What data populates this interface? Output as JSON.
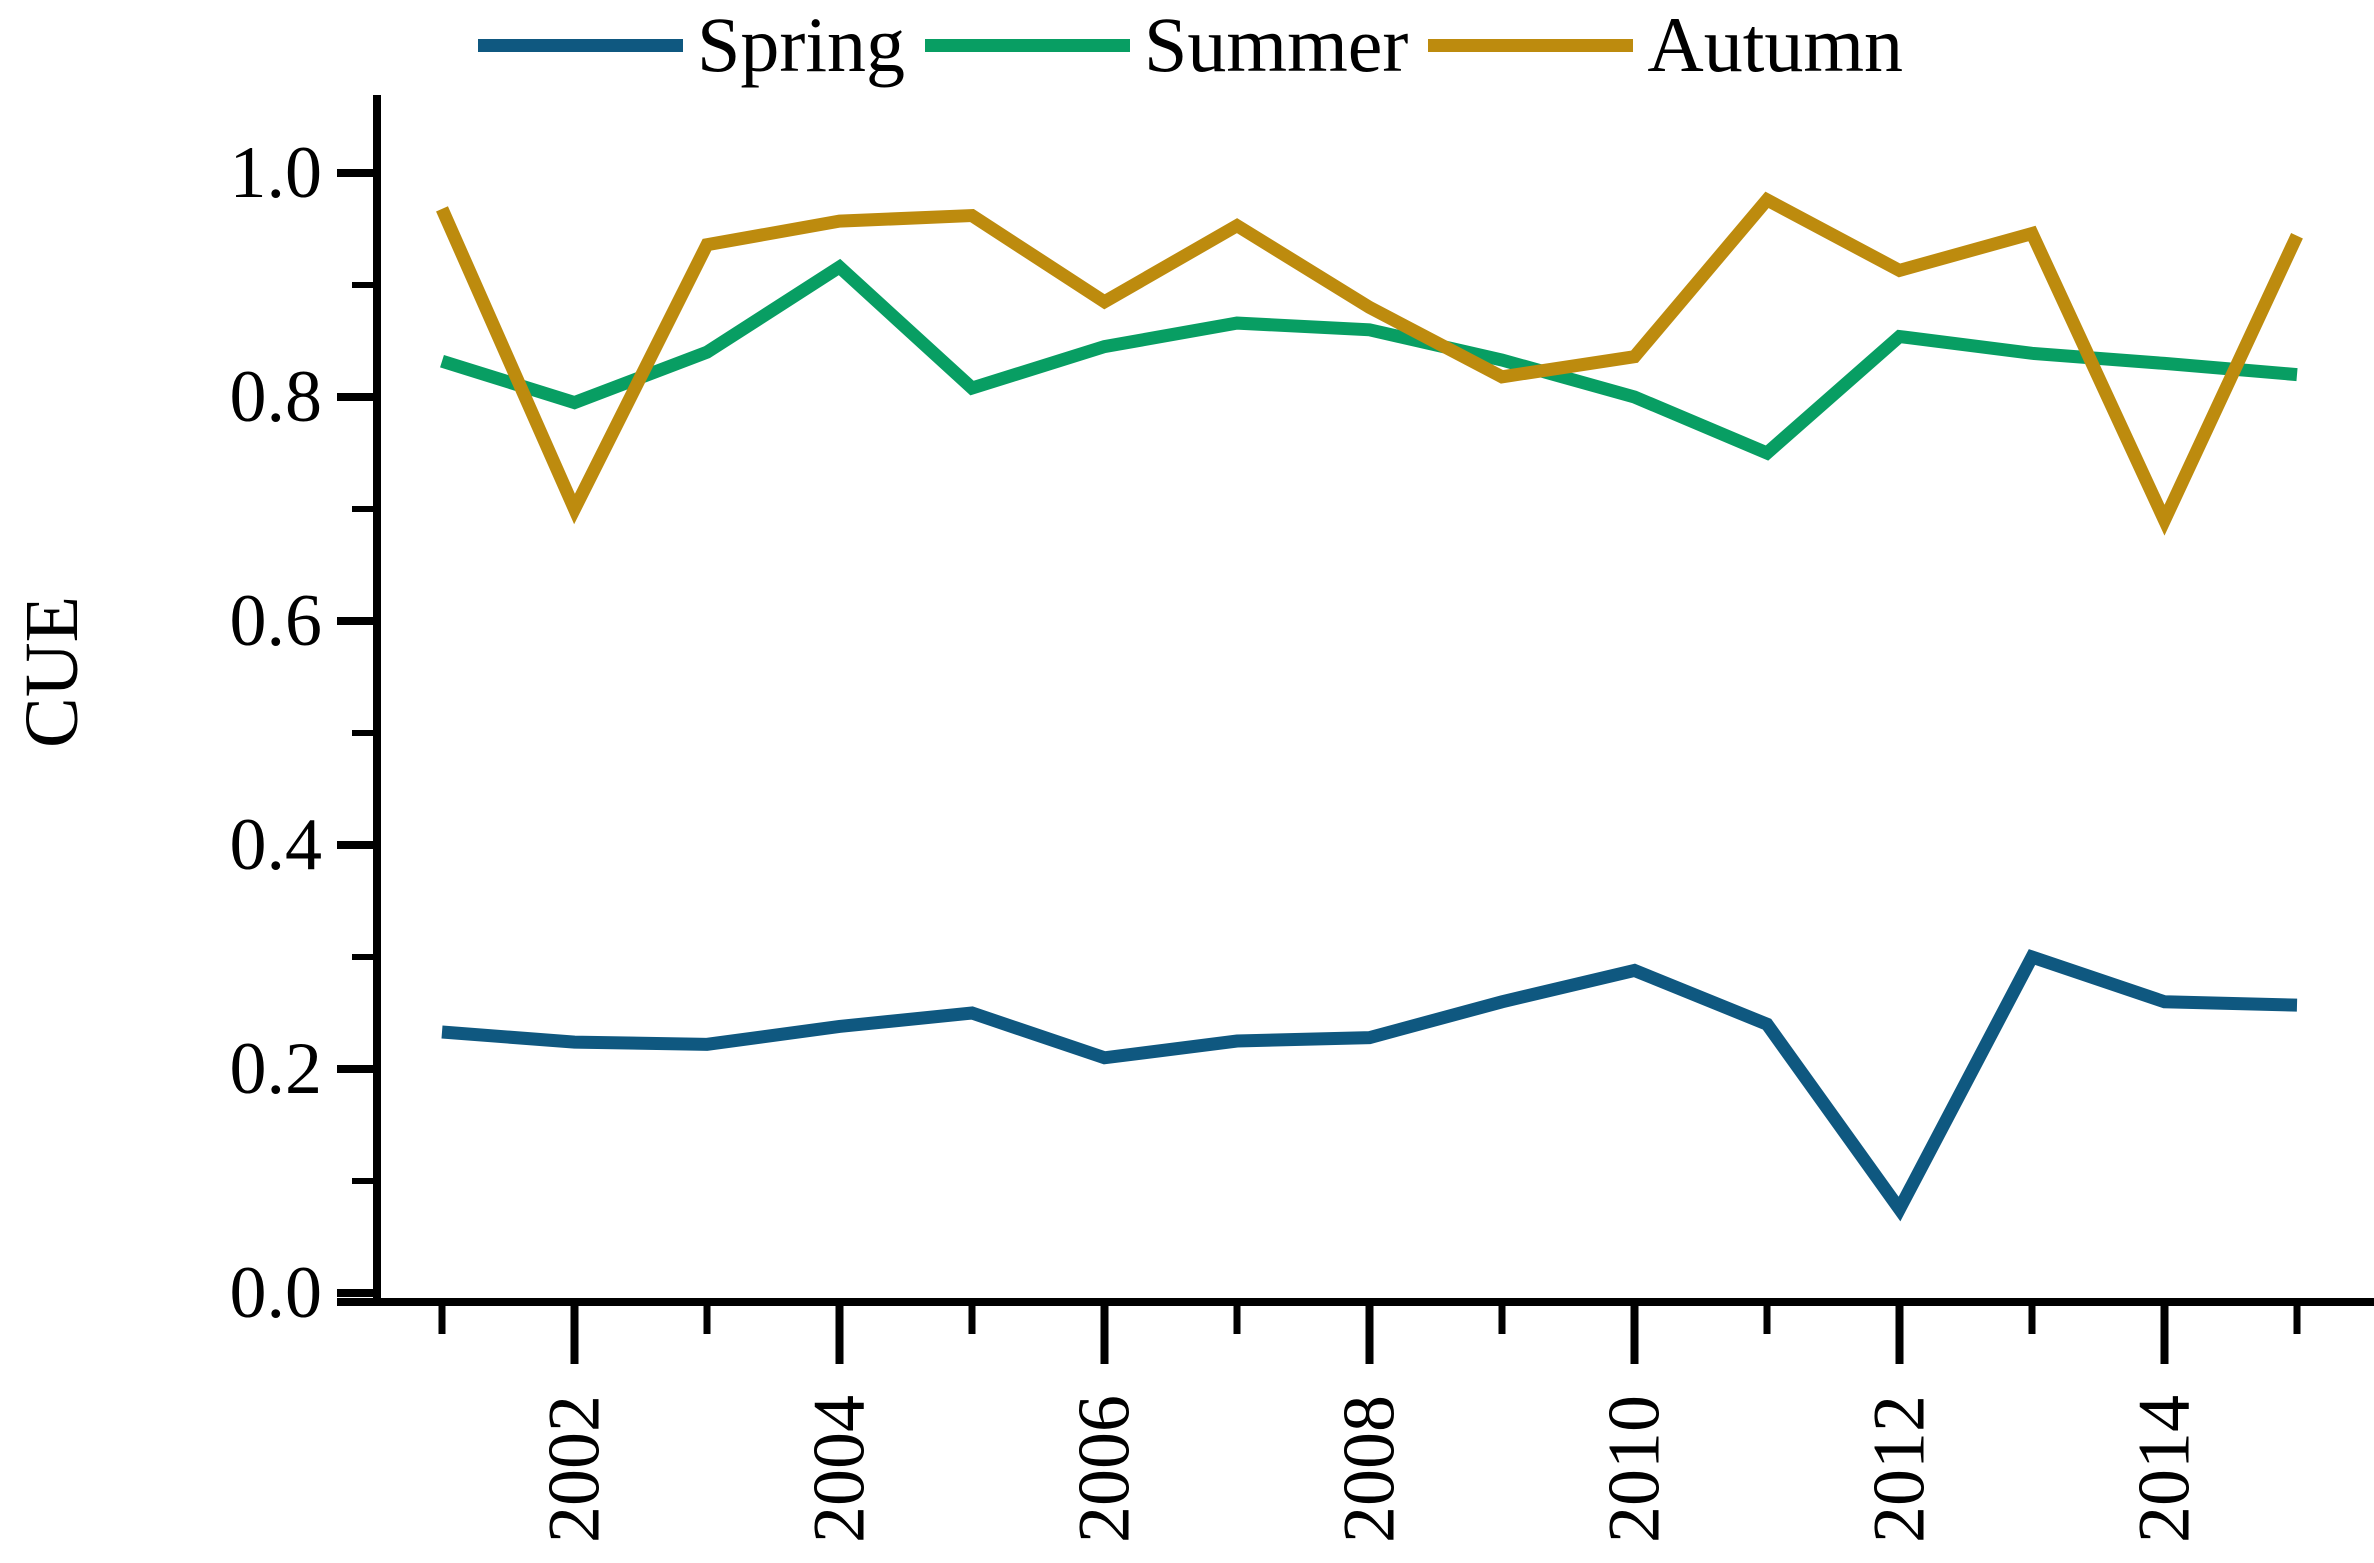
{
  "figure": {
    "background": "#ffffff"
  },
  "chart_data": {
    "type": "line",
    "title": "",
    "xlabel": "",
    "ylabel": "CUE",
    "legend_position": "top",
    "grid": false,
    "x": [
      2001,
      2002,
      2003,
      2004,
      2005,
      2006,
      2007,
      2008,
      2009,
      2010,
      2011,
      2012,
      2013,
      2014,
      2015
    ],
    "xlim": [
      2000.5,
      2015.6
    ],
    "ylim": [
      0.0,
      1.065
    ],
    "xticks_major": [
      {
        "value": 2002,
        "label": "2002"
      },
      {
        "value": 2004,
        "label": "2004"
      },
      {
        "value": 2006,
        "label": "2006"
      },
      {
        "value": 2008,
        "label": "2008"
      },
      {
        "value": 2010,
        "label": "2010"
      },
      {
        "value": 2012,
        "label": "2012"
      },
      {
        "value": 2014,
        "label": "2014"
      }
    ],
    "xticks_minor": [
      2001,
      2003,
      2005,
      2007,
      2009,
      2011,
      2013,
      2015
    ],
    "yticks_major": [
      {
        "value": 0.0,
        "label": "0.0"
      },
      {
        "value": 0.2,
        "label": "0.2"
      },
      {
        "value": 0.4,
        "label": "0.4"
      },
      {
        "value": 0.6,
        "label": "0.6"
      },
      {
        "value": 0.8,
        "label": "0.8"
      },
      {
        "value": 1.0,
        "label": "1.0"
      }
    ],
    "yticks_minor": [
      0.1,
      0.3,
      0.5,
      0.7,
      0.9
    ],
    "series": [
      {
        "name": "Spring",
        "color": "#0f5880",
        "values": [
          0.233,
          0.224,
          0.222,
          0.238,
          0.25,
          0.21,
          0.225,
          0.228,
          0.26,
          0.288,
          0.24,
          0.075,
          0.3,
          0.26,
          0.257
        ]
      },
      {
        "name": "Summer",
        "color": "#089e63",
        "values": [
          0.832,
          0.795,
          0.84,
          0.916,
          0.808,
          0.845,
          0.866,
          0.86,
          0.833,
          0.8,
          0.75,
          0.854,
          0.839,
          0.83,
          0.82
        ]
      },
      {
        "name": "Autumn",
        "color": "#bd8b0e",
        "values": [
          0.968,
          0.7,
          0.936,
          0.957,
          0.962,
          0.885,
          0.953,
          0.88,
          0.818,
          0.836,
          0.976,
          0.913,
          0.946,
          0.69,
          0.944
        ]
      }
    ]
  }
}
